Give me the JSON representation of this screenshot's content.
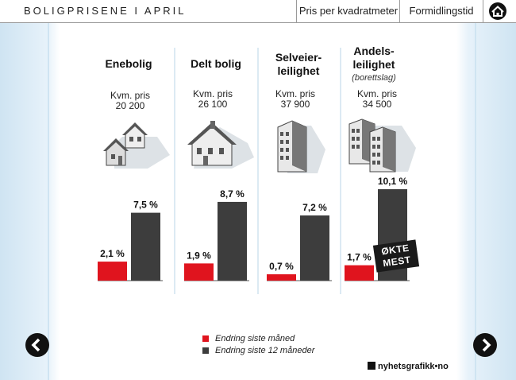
{
  "header": {
    "title": "BOLIGPRISENE I APRIL",
    "tabs": [
      {
        "label": "Pris per kvadratmeter"
      },
      {
        "label": "Formidlingstid"
      }
    ],
    "home_icon": "home-icon"
  },
  "chart_data": {
    "type": "bar",
    "categories": [
      "Enebolig",
      "Delt bolig",
      "Selveier-leilighet",
      "Andels-leilighet"
    ],
    "series": [
      {
        "name": "Endring siste måned",
        "values": [
          2.1,
          1.9,
          0.7,
          1.7
        ],
        "color": "#e0141e"
      },
      {
        "name": "Endring siste 12 måneder",
        "values": [
          7.5,
          8.7,
          7.2,
          10.1
        ],
        "color": "#3d3d3d"
      }
    ],
    "value_labels": {
      "month": [
        "2,1 %",
        "1,9 %",
        "0,7 %",
        "1,7 %"
      ],
      "year": [
        "7,5 %",
        "8,7 %",
        "7,2 %",
        "10,1 %"
      ]
    },
    "ylim": [
      0,
      11
    ],
    "legend": "bottom-center"
  },
  "columns": [
    {
      "title_line1": "Enebolig",
      "title_line2": "",
      "subtitle": "",
      "price_label": "Kvm. pris",
      "price": "20 200",
      "icon": "house-icon"
    },
    {
      "title_line1": "Delt bolig",
      "title_line2": "",
      "subtitle": "",
      "price_label": "Kvm. pris",
      "price": "26 100",
      "icon": "semi-detached-house-icon"
    },
    {
      "title_line1": "Selveier-",
      "title_line2": "leilighet",
      "subtitle": "",
      "price_label": "Kvm. pris",
      "price": "37 900",
      "icon": "apartment-building-icon"
    },
    {
      "title_line1": "Andels-",
      "title_line2": "leilighet",
      "subtitle": "(borettslag)",
      "price_label": "Kvm. pris",
      "price": "34 500",
      "icon": "apartment-buildings-icon"
    }
  ],
  "stamp": {
    "line1": "ØKTE",
    "line2": "MEST"
  },
  "legend": {
    "month": "Endring siste måned",
    "year": "Endring siste 12 måneder"
  },
  "footer": {
    "brand": "nyhetsgrafikk•no",
    "prev_icon": "chevron-left-icon",
    "next_icon": "chevron-right-icon"
  }
}
